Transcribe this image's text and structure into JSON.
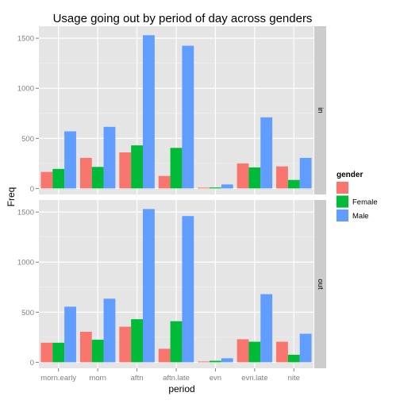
{
  "chart_data": {
    "type": "bar",
    "title": "Usage going out by period of day across genders",
    "xlabel": "period",
    "ylabel": "Freq",
    "categories": [
      "morn.early",
      "morn",
      "aftn",
      "aftn.late",
      "evn",
      "evn.late",
      "nite"
    ],
    "ylim": [
      -60,
      1620
    ],
    "yticks": [
      0,
      500,
      1000,
      1500
    ],
    "grid": true,
    "legend": {
      "title": "gender",
      "position": "right",
      "entries": [
        {
          "label": "",
          "color": "#F8766D"
        },
        {
          "label": "Female",
          "color": "#00BA38"
        },
        {
          "label": "Male",
          "color": "#619CFF"
        }
      ]
    },
    "panels": [
      {
        "strip": "in",
        "series": [
          {
            "color": "#F8766D",
            "values": [
              165,
              305,
              360,
              125,
              8,
              250,
              220
            ]
          },
          {
            "name": "Female",
            "color": "#00BA38",
            "values": [
              195,
              215,
              430,
              405,
              10,
              210,
              85
            ]
          },
          {
            "name": "Male",
            "color": "#619CFF",
            "values": [
              570,
              615,
              1530,
              1425,
              40,
              710,
              305
            ]
          }
        ]
      },
      {
        "strip": "out",
        "series": [
          {
            "color": "#F8766D",
            "values": [
              195,
              305,
              355,
              135,
              8,
              230,
              205
            ]
          },
          {
            "name": "Female",
            "color": "#00BA38",
            "values": [
              195,
              225,
              430,
              410,
              15,
              205,
              75
            ]
          },
          {
            "name": "Male",
            "color": "#619CFF",
            "values": [
              555,
              635,
              1530,
              1460,
              40,
              680,
              285
            ]
          }
        ]
      }
    ]
  }
}
